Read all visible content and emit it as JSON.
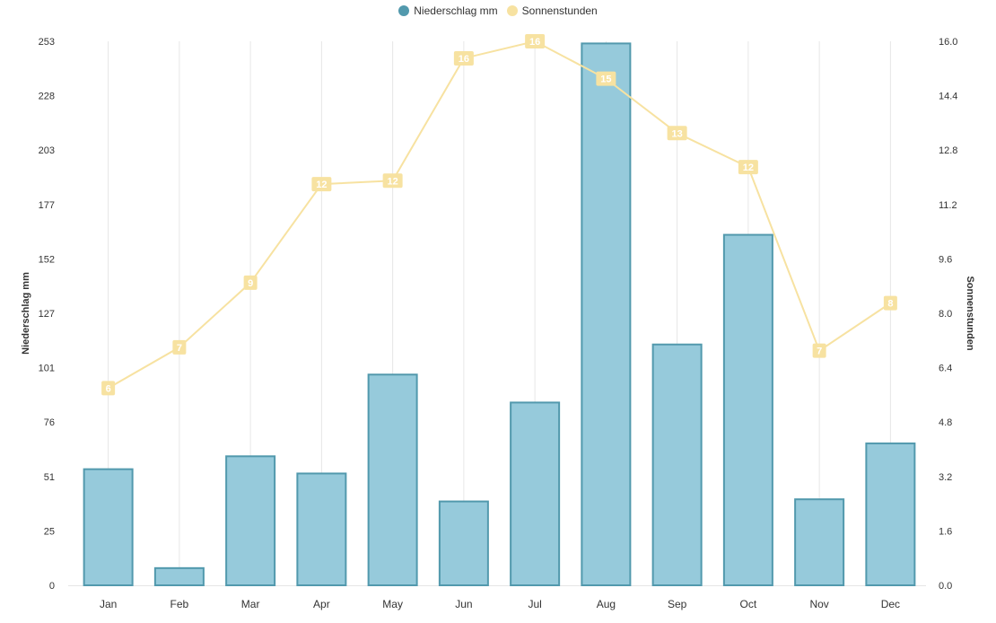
{
  "chart_data": {
    "type": "bar",
    "categories": [
      "Jan",
      "Feb",
      "Mar",
      "Apr",
      "May",
      "Jun",
      "Jul",
      "Aug",
      "Sep",
      "Oct",
      "Nov",
      "Dec"
    ],
    "series": [
      {
        "name": "Niederschlag mm",
        "type": "bar",
        "axis": "left",
        "color": "#96cadb",
        "border_color": "#5299ad",
        "values": [
          54,
          8,
          60,
          52,
          98,
          39,
          85,
          252,
          112,
          163,
          40,
          66
        ]
      },
      {
        "name": "Sonnenstunden",
        "type": "line",
        "axis": "right",
        "color": "#f7e2a1",
        "values": [
          5.8,
          7.0,
          8.9,
          11.8,
          11.9,
          15.5,
          16.0,
          14.9,
          13.3,
          12.3,
          6.9,
          8.3
        ],
        "data_labels": [
          "6",
          "7",
          "9",
          "12",
          "12",
          "16",
          "16",
          "15",
          "13",
          "12",
          "7",
          "8"
        ]
      }
    ],
    "y_left": {
      "label": "Niederschlag mm",
      "ticks": [
        "0",
        "25",
        "51",
        "76",
        "101",
        "127",
        "152",
        "177",
        "203",
        "228",
        "253"
      ],
      "range": [
        0,
        253
      ]
    },
    "y_right": {
      "label": "Sonnenstunden",
      "ticks": [
        "0.0",
        "1.6",
        "3.2",
        "4.8",
        "6.4",
        "8.0",
        "9.6",
        "11.2",
        "12.8",
        "14.4",
        "16.0"
      ],
      "range": [
        0,
        16
      ]
    },
    "grid": "vertical",
    "legend": "top-center"
  }
}
